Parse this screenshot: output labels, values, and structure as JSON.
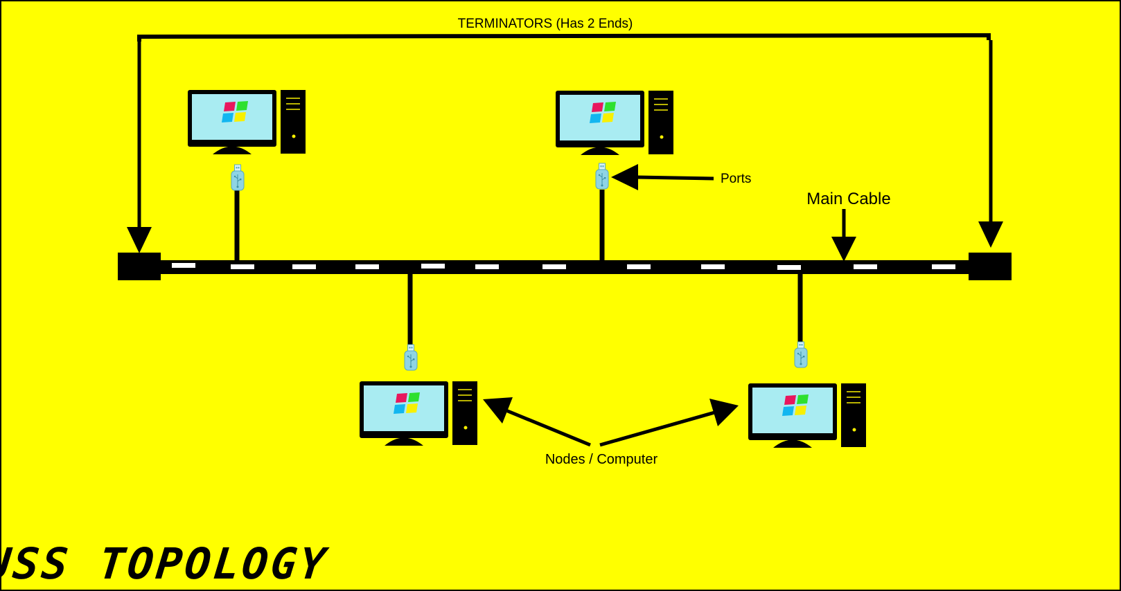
{
  "title": "BUSS TOPOLOGY",
  "labels": {
    "terminators": "TERMINATORS (Has 2 Ends)",
    "ports": "Ports",
    "main_cable": "Main Cable",
    "nodes": "Nodes / Computer"
  },
  "colors": {
    "background": "#ffff00",
    "ink": "#000000",
    "screen": "#a9ecf2",
    "port": "#8fd4e4",
    "logo_red": "#e8175d",
    "logo_green": "#2ee02e",
    "logo_blue": "#12b6f0",
    "logo_yellow": "#f8f000",
    "cable_dash": "#ffffff"
  },
  "icons": {
    "computer": "desktop-computer-icon",
    "port": "usb-port-icon",
    "terminator": "terminator-block"
  },
  "node_count": 4
}
